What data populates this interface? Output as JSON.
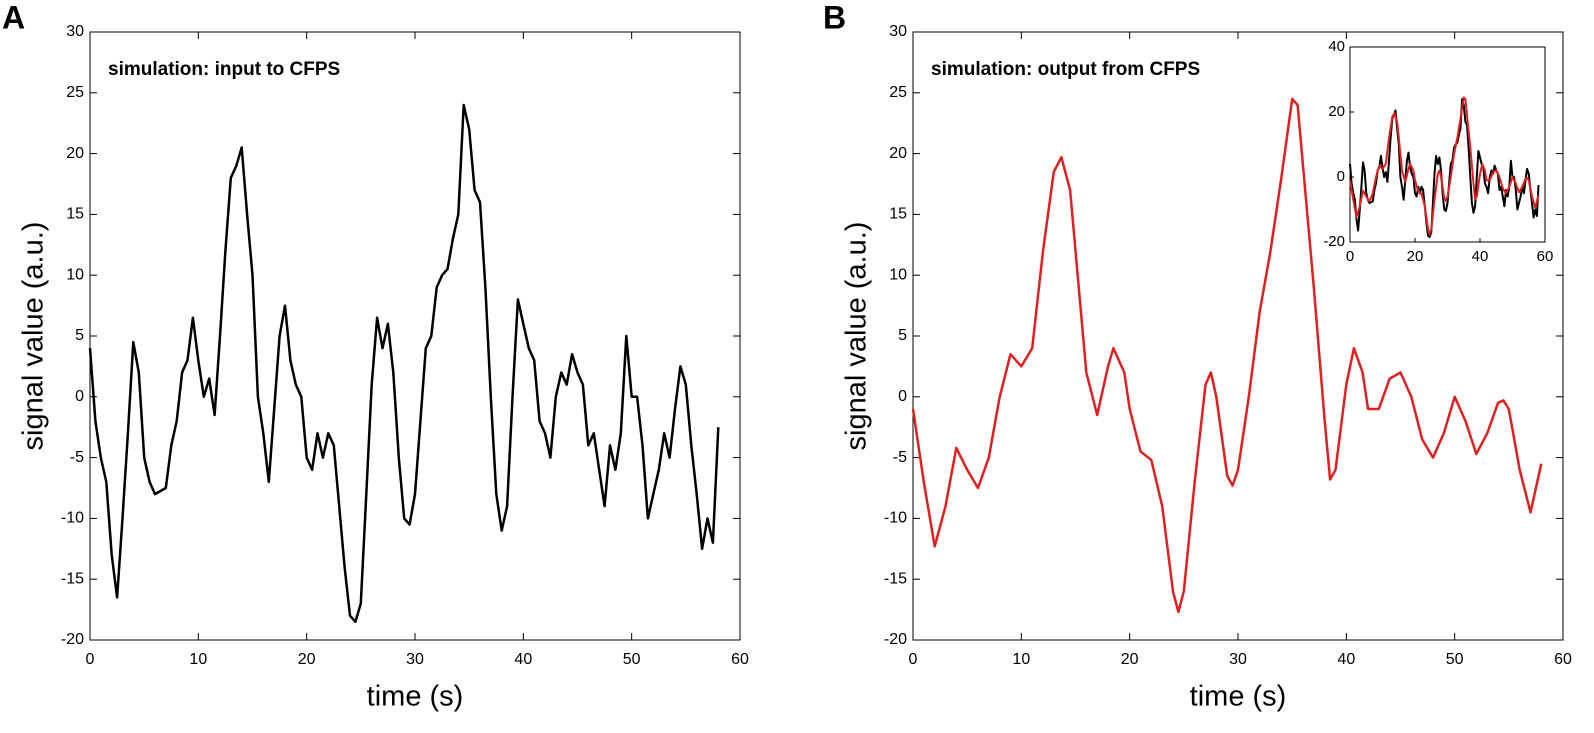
{
  "chart_data": [
    {
      "type": "line",
      "panel": "A",
      "annotation": "simulation: input to CFPS",
      "x_label": "time (s)",
      "y_label": "signal value (a.u.)",
      "xlim": [
        0,
        60
      ],
      "ylim": [
        -20,
        30
      ],
      "xticks": [
        0,
        10,
        20,
        30,
        40,
        50,
        60
      ],
      "yticks": [
        -20,
        -15,
        -10,
        -5,
        0,
        5,
        10,
        15,
        20,
        25,
        30
      ],
      "color": "#000000",
      "x": [
        0,
        0.5,
        1,
        1.5,
        2,
        2.5,
        3,
        3.5,
        4,
        4.5,
        5,
        5.5,
        6,
        7,
        7.5,
        8,
        8.5,
        9,
        9.5,
        10,
        10.5,
        11,
        11.5,
        12,
        12.5,
        13,
        13.5,
        14,
        14.5,
        15,
        15.5,
        16,
        16.5,
        17,
        17.5,
        18,
        18.5,
        19,
        19.5,
        20,
        20.5,
        21,
        21.5,
        22,
        22.5,
        23,
        23.5,
        24,
        24.5,
        25,
        25.5,
        26,
        26.5,
        27,
        27.5,
        28,
        28.5,
        29,
        29.5,
        30,
        30.5,
        31,
        31.5,
        32,
        32.5,
        33,
        33.5,
        34,
        34.5,
        35,
        35.5,
        36,
        36.5,
        37,
        37.5,
        38,
        38.5,
        39,
        39.5,
        40,
        40.5,
        41,
        41.5,
        42,
        42.5,
        43,
        43.5,
        44,
        44.5,
        45,
        45.5,
        46,
        46.5,
        47,
        47.5,
        48,
        48.5,
        49,
        49.5,
        50,
        50.5,
        51,
        51.5,
        52,
        52.5,
        53,
        53.5,
        54,
        54.5,
        55,
        55.5,
        56,
        56.5,
        57,
        57.5,
        58
      ],
      "values": [
        4,
        -2,
        -5,
        -7,
        -13,
        -16.5,
        -10,
        -3,
        4.5,
        2,
        -5,
        -7,
        -8,
        -7.5,
        -4,
        -2,
        2,
        3,
        6.5,
        3,
        0,
        1.5,
        -1.5,
        5,
        12,
        18,
        19,
        20.5,
        15,
        10,
        0,
        -3,
        -7,
        -1,
        5,
        7.5,
        3,
        1,
        0,
        -5,
        -6,
        -3,
        -5,
        -3,
        -4,
        -9,
        -14,
        -18,
        -18.5,
        -17,
        -8,
        1,
        6.5,
        4,
        6,
        2,
        -5,
        -10,
        -10.5,
        -8,
        -2,
        4,
        5,
        9,
        10,
        10.5,
        13,
        15,
        24,
        22,
        17,
        16,
        9,
        0,
        -8,
        -11,
        -9,
        0,
        8,
        6,
        4,
        3,
        -2,
        -3,
        -5,
        0,
        2,
        1,
        3.5,
        2,
        1,
        -4,
        -3,
        -6,
        -9,
        -4,
        -6,
        -3,
        5,
        0,
        0,
        -4,
        -10,
        -8,
        -6,
        -3,
        -5,
        -1,
        2.5,
        1,
        -4,
        -8,
        -12.5,
        -10,
        -12,
        -2.5
      ]
    },
    {
      "type": "line",
      "panel": "B",
      "annotation": "simulation: output from CFPS",
      "x_label": "time (s)",
      "y_label": "signal value (a.u.)",
      "xlim": [
        0,
        60
      ],
      "ylim": [
        -20,
        30
      ],
      "xticks": [
        0,
        10,
        20,
        30,
        40,
        50,
        60
      ],
      "yticks": [
        -20,
        -15,
        -10,
        -5,
        0,
        5,
        10,
        15,
        20,
        25,
        30
      ],
      "color": "#e02020",
      "x": [
        0,
        1,
        2,
        3,
        4,
        5,
        6,
        7,
        8,
        9,
        10,
        11,
        12,
        13,
        13.7,
        14.5,
        15,
        16,
        17,
        18,
        18.5,
        19.5,
        20,
        21,
        22,
        23,
        24,
        24.5,
        25,
        26,
        27,
        27.5,
        28,
        29,
        29.5,
        30,
        31,
        32,
        33,
        34,
        35,
        35.5,
        36,
        37,
        38,
        38.5,
        39,
        40,
        40.7,
        41.5,
        42,
        43,
        44,
        45,
        46,
        47,
        48,
        49,
        50,
        51,
        52,
        53,
        54,
        54.5,
        55,
        56,
        57,
        58
      ],
      "values": [
        -1,
        -7,
        -12.3,
        -9,
        -4.2,
        -6,
        -7.5,
        -5,
        0,
        3.5,
        2.5,
        4,
        12,
        18.5,
        19.7,
        17,
        12,
        2,
        -1.5,
        2.5,
        4,
        2,
        -1,
        -4.5,
        -5.2,
        -9,
        -16,
        -17.7,
        -16,
        -7,
        1,
        2,
        0,
        -6.5,
        -7.3,
        -6,
        0,
        7,
        12,
        18,
        24.5,
        24,
        19,
        9,
        -2,
        -6.8,
        -6,
        1,
        4,
        2,
        -1,
        -1,
        1.5,
        2,
        0,
        -3.5,
        -5,
        -3,
        0,
        -2,
        -4.7,
        -3,
        -0.5,
        -0.3,
        -1,
        -6,
        -9.5,
        -5.5
      ],
      "inset": {
        "xlim": [
          0,
          60
        ],
        "ylim": [
          -20,
          40
        ],
        "xticks": [
          0,
          20,
          40,
          60
        ],
        "yticks": [
          -20,
          0,
          20,
          40
        ]
      }
    }
  ]
}
